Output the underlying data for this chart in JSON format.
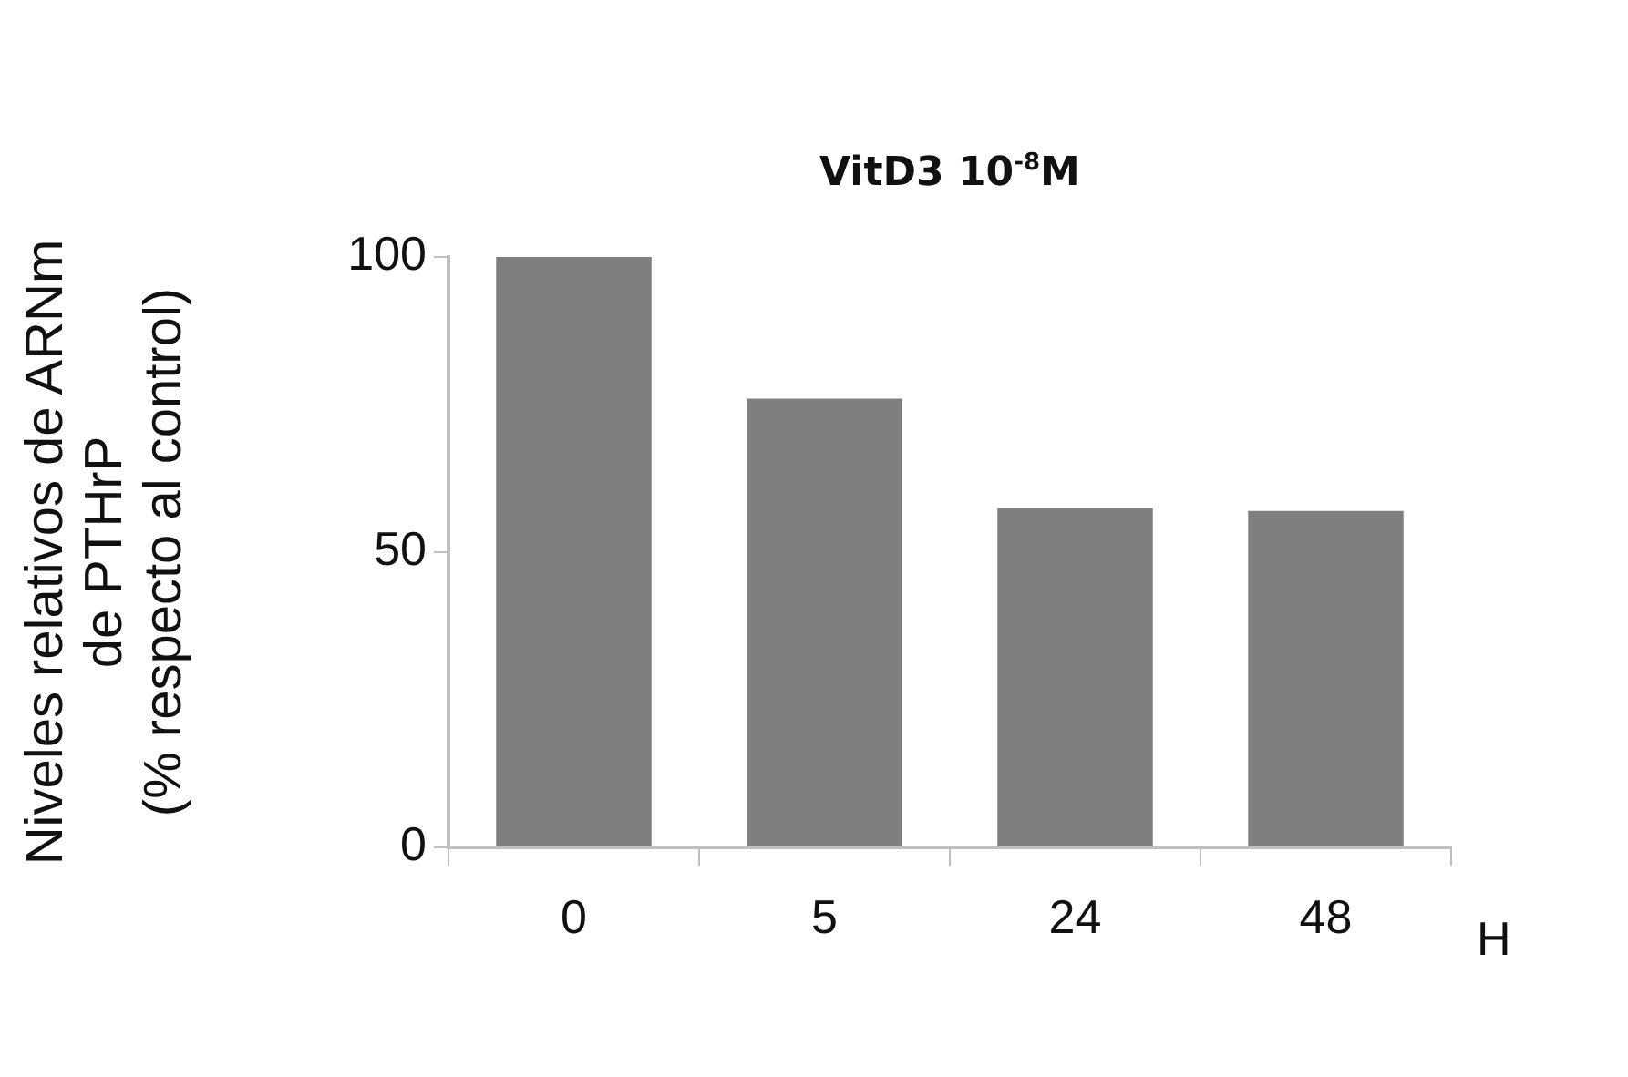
{
  "chart_data": {
    "type": "bar",
    "title": "VitD3 10$^{-8}$M",
    "ylabel": "Niveles relativos de ARNm\nde PTHrP\n(% respecto al control)",
    "xlabel": "H",
    "categories": [
      "0",
      "5",
      "24",
      "48"
    ],
    "values": [
      100,
      76,
      57.5,
      57
    ],
    "color": "#7f7f7f",
    "ylim": [
      0,
      100
    ],
    "yticks": [
      0,
      50,
      100
    ],
    "grid": false,
    "legend": false
  }
}
